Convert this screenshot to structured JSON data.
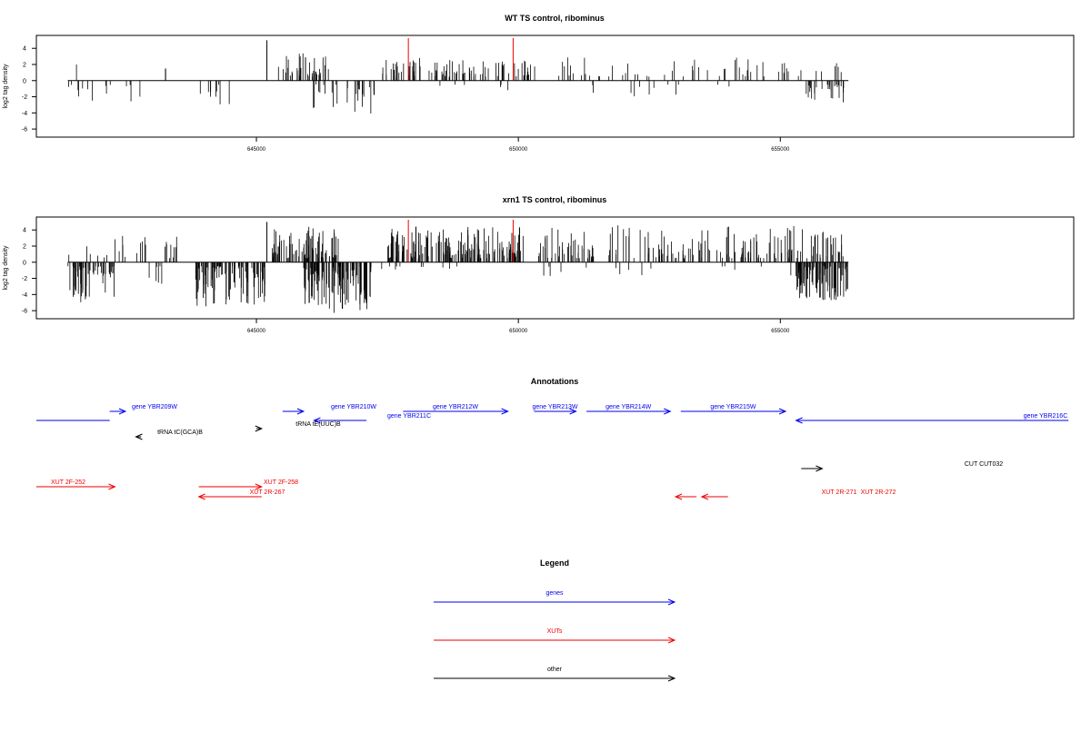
{
  "colors": {
    "gene": "#0000ee",
    "xut": "#ee0000",
    "other": "#000000",
    "marker": "#ee0000",
    "bar": "#000000"
  },
  "chart_data": [
    {
      "type": "bar",
      "title": "WT TS control, ribominus",
      "ylabel": "log2 tag density",
      "ylim": [
        -7,
        5.6
      ],
      "yticks": [
        -6,
        -4,
        -2,
        0,
        2,
        4
      ],
      "xlim": [
        640800,
        660600
      ],
      "xticks": [
        645000,
        650000,
        655000
      ],
      "xtick_labels": [
        "645000",
        "650000",
        "655000"
      ],
      "data_range": [
        641400,
        656300
      ],
      "red_markers": [
        647900,
        649900
      ],
      "tall_bars": [
        {
          "x": 645200,
          "y": 5
        }
      ],
      "pos_clusters": [
        {
          "from": 641500,
          "to": 641600,
          "count": 1,
          "min": 2,
          "max": 2
        },
        {
          "from": 643200,
          "to": 643300,
          "count": 2,
          "min": 1.5,
          "max": 1.5
        },
        {
          "from": 645400,
          "to": 646400,
          "count": 40,
          "min": 0.5,
          "max": 3.6
        },
        {
          "from": 647400,
          "to": 648300,
          "count": 28,
          "min": 0.5,
          "max": 2.8
        },
        {
          "from": 648300,
          "to": 649400,
          "count": 38,
          "min": 0.5,
          "max": 2.6
        },
        {
          "from": 649400,
          "to": 650400,
          "count": 22,
          "min": 0.5,
          "max": 2.5
        },
        {
          "from": 650700,
          "to": 656200,
          "count": 60,
          "min": 0.5,
          "max": 2.9
        }
      ],
      "neg_clusters": [
        {
          "from": 641400,
          "to": 642300,
          "count": 10,
          "min": 0.5,
          "max": 2.7
        },
        {
          "from": 642500,
          "to": 642800,
          "count": 4,
          "min": 0.5,
          "max": 2.7
        },
        {
          "from": 643800,
          "to": 644700,
          "count": 9,
          "min": 0.5,
          "max": 3.5
        },
        {
          "from": 645900,
          "to": 647300,
          "count": 28,
          "min": 0.5,
          "max": 4.3
        },
        {
          "from": 648500,
          "to": 649000,
          "count": 3,
          "min": 0.5,
          "max": 1.2
        },
        {
          "from": 649400,
          "to": 650100,
          "count": 3,
          "min": 0.5,
          "max": 1.5
        },
        {
          "from": 651200,
          "to": 654300,
          "count": 12,
          "min": 0.5,
          "max": 2
        },
        {
          "from": 655400,
          "to": 656300,
          "count": 26,
          "min": 0.5,
          "max": 2.7
        }
      ]
    },
    {
      "type": "bar",
      "title": "xrn1 TS control, ribominus",
      "ylabel": "log2 tag density",
      "ylim": [
        -7,
        5.6
      ],
      "yticks": [
        -6,
        -4,
        -2,
        0,
        2,
        4
      ],
      "xlim": [
        640800,
        660600
      ],
      "xticks": [
        645000,
        650000,
        655000
      ],
      "xtick_labels": [
        "645000",
        "650000",
        "655000"
      ],
      "data_range": [
        641400,
        656300
      ],
      "red_markers": [
        647900,
        649900
      ],
      "tall_bars": [
        {
          "x": 645200,
          "y": 5
        }
      ],
      "pos_clusters": [
        {
          "from": 641400,
          "to": 643500,
          "count": 25,
          "min": 0.5,
          "max": 3.3
        },
        {
          "from": 645300,
          "to": 646600,
          "count": 80,
          "min": 0.5,
          "max": 4.6
        },
        {
          "from": 647500,
          "to": 650100,
          "count": 160,
          "min": 0.5,
          "max": 4.6
        },
        {
          "from": 650300,
          "to": 656200,
          "count": 180,
          "min": 0.5,
          "max": 4.6
        }
      ],
      "neg_clusters": [
        {
          "from": 641400,
          "to": 642300,
          "count": 60,
          "min": 0.5,
          "max": 5.2
        },
        {
          "from": 642700,
          "to": 643300,
          "count": 6,
          "min": 0.5,
          "max": 2.7
        },
        {
          "from": 643800,
          "to": 645200,
          "count": 90,
          "min": 0.5,
          "max": 5.5
        },
        {
          "from": 645900,
          "to": 647200,
          "count": 110,
          "min": 0.5,
          "max": 6.3
        },
        {
          "from": 647200,
          "to": 649000,
          "count": 10,
          "min": 0.5,
          "max": 1.4
        },
        {
          "from": 650000,
          "to": 655300,
          "count": 15,
          "min": 0.5,
          "max": 2
        },
        {
          "from": 655300,
          "to": 656300,
          "count": 90,
          "min": 0.5,
          "max": 4.7
        }
      ]
    }
  ],
  "annotations": {
    "title": "Annotations",
    "features": [
      {
        "label": "",
        "kind": "gene",
        "from": 640800,
        "to": 642200,
        "strand": "none",
        "row": 1
      },
      {
        "label": "gene YBR209W",
        "kind": "gene",
        "from": 642200,
        "to": 642500,
        "strand": "+",
        "row": 0
      },
      {
        "label": "gene YBR210W",
        "kind": "gene",
        "from": 645500,
        "to": 645900,
        "strand": "+",
        "row": 0
      },
      {
        "label": "gene YBR211C",
        "kind": "gene",
        "from": 646100,
        "to": 647100,
        "strand": "-",
        "row": 1
      },
      {
        "label": "gene YBR212W",
        "kind": "gene",
        "from": 647800,
        "to": 649800,
        "strand": "+",
        "row": 0
      },
      {
        "label": "gene YBR213W",
        "kind": "gene",
        "from": 650300,
        "to": 651100,
        "strand": "+",
        "row": 0
      },
      {
        "label": "gene YBR214W",
        "kind": "gene",
        "from": 651300,
        "to": 652900,
        "strand": "+",
        "row": 0
      },
      {
        "label": "gene YBR215W",
        "kind": "gene",
        "from": 653100,
        "to": 655100,
        "strand": "+",
        "row": 0
      },
      {
        "label": "gene YBR216C",
        "kind": "gene",
        "from": 655300,
        "to": 660500,
        "strand": "-",
        "row": 1
      },
      {
        "label": "tRNA tC(GCA)B",
        "kind": "other",
        "from": 642700,
        "to": 642800,
        "strand": "-",
        "row": 2
      },
      {
        "label": "tRNA tE(UUC)B",
        "kind": "other",
        "from": 645000,
        "to": 645100,
        "strand": "+",
        "row": 1.5
      },
      {
        "label": "CUT CUT032",
        "kind": "other",
        "from": 655400,
        "to": 655800,
        "strand": "+",
        "row": 4
      },
      {
        "label": "XUT 2F-252",
        "kind": "xut",
        "from": 640800,
        "to": 642300,
        "strand": "+",
        "row": 5
      },
      {
        "label": "XUT 2F-258",
        "kind": "xut",
        "from": 643900,
        "to": 645100,
        "strand": "+",
        "row": 5
      },
      {
        "label": "XUT 2R-267",
        "kind": "xut",
        "from": 643900,
        "to": 645100,
        "strand": "-",
        "row": 6
      },
      {
        "label": "XUT 2R-271",
        "kind": "xut",
        "from": 653000,
        "to": 653400,
        "strand": "-",
        "row": 6
      },
      {
        "label": "XUT 2R-272",
        "kind": "xut",
        "from": 653500,
        "to": 654000,
        "strand": "-",
        "row": 6
      }
    ]
  },
  "legend": {
    "title": "Legend",
    "entries": [
      {
        "label": "genes",
        "kind": "gene"
      },
      {
        "label": "XUTs",
        "kind": "xut"
      },
      {
        "label": "other",
        "kind": "other"
      }
    ]
  }
}
